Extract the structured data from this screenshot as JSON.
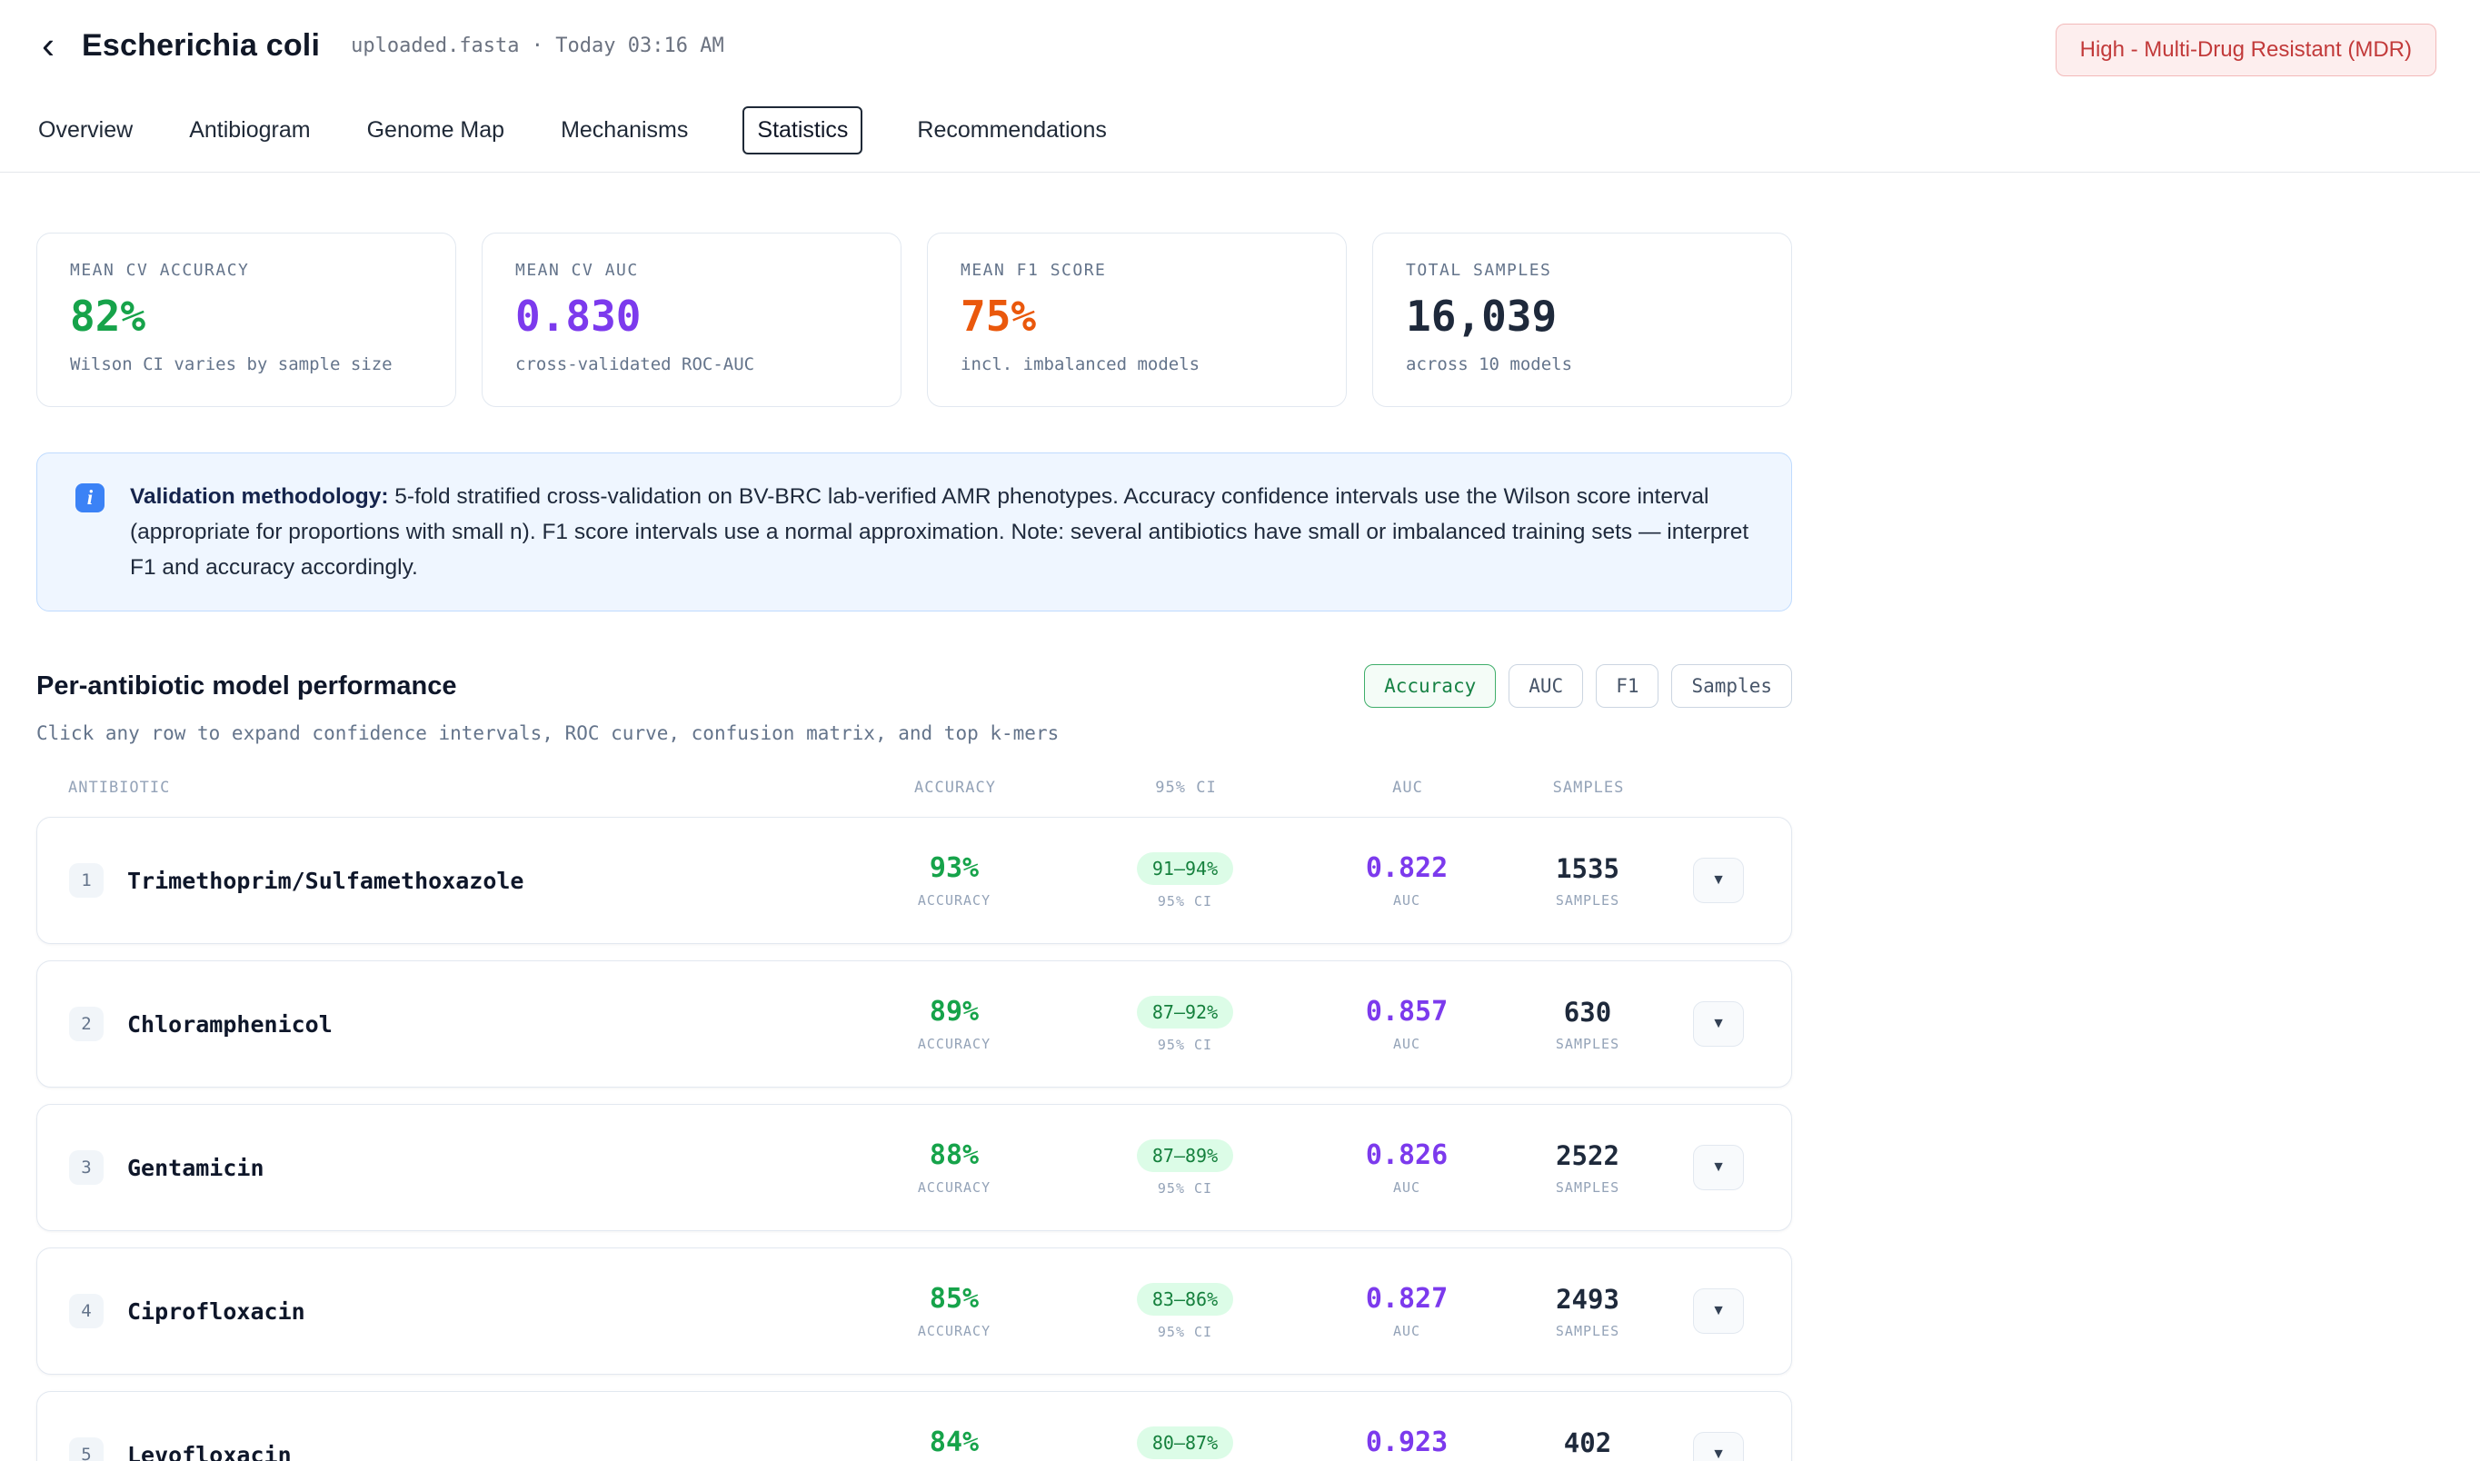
{
  "header": {
    "back_icon": "‹",
    "title": "Escherichia coli",
    "file": "uploaded.fasta",
    "separator": "·",
    "timestamp": "Today 03:16 AM",
    "risk_badge": "High - Multi-Drug Resistant (MDR)"
  },
  "tabs": [
    {
      "label": "Overview"
    },
    {
      "label": "Antibiogram"
    },
    {
      "label": "Genome Map"
    },
    {
      "label": "Mechanisms"
    },
    {
      "label": "Statistics"
    },
    {
      "label": "Recommendations"
    }
  ],
  "stat_cards": [
    {
      "label": "MEAN CV ACCURACY",
      "value": "82%",
      "color": "#16a34a",
      "sub": "Wilson CI varies by sample size"
    },
    {
      "label": "MEAN CV AUC",
      "value": "0.830",
      "color": "#7c3aed",
      "sub": "cross-validated ROC-AUC"
    },
    {
      "label": "MEAN F1 SCORE",
      "value": "75%",
      "color": "#ea580c",
      "sub": "incl. imbalanced models"
    },
    {
      "label": "TOTAL SAMPLES",
      "value": "16,039",
      "color": "#1e293b",
      "sub": "across 10 models"
    }
  ],
  "info_box": {
    "icon": "i",
    "bold": "Validation methodology:",
    "text": "5-fold stratified cross-validation on BV-BRC lab-verified AMR phenotypes. Accuracy confidence intervals use the Wilson score interval (appropriate for proportions with small n). F1 score intervals use a normal approximation. Note: several antibiotics have small or imbalanced training sets — interpret F1 and accuracy accordingly."
  },
  "section": {
    "title": "Per-antibiotic model performance",
    "subtitle": "Click any row to expand confidence intervals, ROC curve, confusion matrix, and top k-mers",
    "sort_buttons": [
      {
        "label": "Accuracy",
        "active": true
      },
      {
        "label": "AUC",
        "active": false
      },
      {
        "label": "F1",
        "active": false
      },
      {
        "label": "Samples",
        "active": false
      }
    ]
  },
  "table": {
    "headers": {
      "antibiotic": "ANTIBIOTIC",
      "accuracy": "ACCURACY",
      "ci": "95% CI",
      "auc": "AUC",
      "samples": "SAMPLES"
    },
    "row_labels": {
      "accuracy": "ACCURACY",
      "ci": "95% CI",
      "auc": "AUC",
      "samples": "SAMPLES"
    },
    "expand_icon": "▼",
    "rows": [
      {
        "rank": "1",
        "name": "Trimethoprim/Sulfamethoxazole",
        "accuracy": "93%",
        "ci": "91–94%",
        "auc": "0.822",
        "samples": "1535"
      },
      {
        "rank": "2",
        "name": "Chloramphenicol",
        "accuracy": "89%",
        "ci": "87–92%",
        "auc": "0.857",
        "samples": "630"
      },
      {
        "rank": "3",
        "name": "Gentamicin",
        "accuracy": "88%",
        "ci": "87–89%",
        "auc": "0.826",
        "samples": "2522"
      },
      {
        "rank": "4",
        "name": "Ciprofloxacin",
        "accuracy": "85%",
        "ci": "83–86%",
        "auc": "0.827",
        "samples": "2493"
      },
      {
        "rank": "5",
        "name": "Levofloxacin",
        "accuracy": "84%",
        "ci": "80–87%",
        "auc": "0.923",
        "samples": "402"
      }
    ]
  }
}
